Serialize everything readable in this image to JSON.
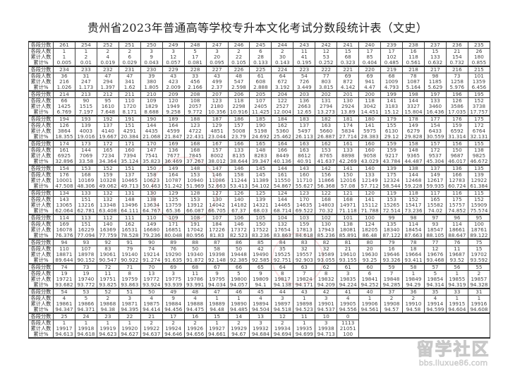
{
  "title": "贵州省2023年普通高等学校专升本文化考试分数段统计表（文史）",
  "table": {
    "row_labels": [
      "各段分数",
      "各段人数",
      "累计人数",
      "累计%"
    ],
    "groups": [
      {
        "scores": [
          261,
          254,
          252,
          251,
          250,
          249,
          248,
          247,
          246,
          245,
          244,
          243,
          242,
          241,
          240,
          239,
          238,
          237,
          236,
          235
        ],
        "counts": [
          1,
          1,
          2,
          2,
          3,
          3,
          5,
          3,
          2,
          6,
          2,
          11,
          12,
          15,
          17,
          17,
          16,
          15,
          21,
          26
        ],
        "cumulative": [
          1,
          2,
          4,
          6,
          9,
          12,
          17,
          20,
          22,
          28,
          30,
          41,
          53,
          68,
          85,
          102,
          118,
          133,
          154,
          180
        ],
        "percent": [
          "0.005",
          "0.01",
          "0.019",
          "0.029",
          "0.043",
          "0.057",
          "0.081",
          "0.095",
          "0.105",
          "0.133",
          "0.143",
          "0.195",
          "0.252",
          "0.323",
          "0.404",
          "0.485",
          "0.561",
          "0.632",
          "0.732",
          "0.855"
        ]
      },
      {
        "scores": [
          234,
          233,
          232,
          231,
          230,
          229,
          228,
          227,
          226,
          225,
          224,
          223,
          222,
          221,
          220,
          219,
          218,
          217,
          216,
          215
        ],
        "counts": [
          36,
          31,
          47,
          47,
          39,
          43,
          33,
          43,
          48,
          61,
          64,
          54,
          77,
          69,
          69,
          68,
          78,
          98,
          73,
          101
        ],
        "cumulative": [
          216,
          247,
          294,
          341,
          380,
          423,
          456,
          499,
          547,
          608,
          672,
          726,
          803,
          872,
          941,
          1009,
          1087,
          1185,
          1258,
          1359
        ],
        "percent": [
          "1.026",
          "1.173",
          "1.397",
          "1.62",
          "1.805",
          "2.009",
          "2.166",
          "2.37",
          "2.598",
          "2.888",
          "3.192",
          "3.449",
          "3.815",
          "4.142",
          "4.47",
          "4.793",
          "5.164",
          "5.629",
          "5.976",
          "6.456"
        ]
      },
      {
        "scores": [
          214,
          213,
          212,
          211,
          210,
          209,
          208,
          207,
          206,
          205,
          204,
          203,
          202,
          201,
          200,
          199,
          198,
          197,
          196,
          195
        ],
        "counts": [
          66,
          90,
          95,
          110,
          109,
          120,
          108,
          123,
          118,
          107,
          122,
          136,
          131,
          130,
          118,
          141,
          144,
          133,
          126,
          152
        ],
        "cumulative": [
          1425,
          1515,
          1610,
          1720,
          1829,
          1949,
          2057,
          2180,
          2298,
          2405,
          2527,
          2663,
          2794,
          2924,
          3042,
          3183,
          3327,
          3460,
          3586,
          3738
        ],
        "percent": [
          "6.769",
          "7.197",
          "7.648",
          "8.171",
          "8.688",
          "9.258",
          "9.772",
          "10.356",
          "10.916",
          "11.425",
          "12.004",
          "12.65",
          "13.273",
          "13.89",
          "14.451",
          "15.12",
          "15.804",
          "16.436",
          "17.035",
          "17.757"
        ]
      },
      {
        "scores": [
          194,
          193,
          192,
          191,
          190,
          189,
          188,
          187,
          186,
          185,
          184,
          183,
          182,
          181,
          180,
          179,
          178,
          177,
          176,
          175
        ],
        "counts": [
          126,
          139,
          137,
          151,
          144,
          164,
          123,
          129,
          157,
          190,
          162,
          137,
          163,
          174,
          141,
          155,
          149,
          154,
          159,
          172
        ],
        "cumulative": [
          3864,
          4003,
          4140,
          4291,
          4435,
          4599,
          4722,
          4851,
          5008,
          5198,
          5360,
          5497,
          5660,
          5834,
          5975,
          6130,
          6279,
          6433,
          6592,
          6764
        ],
        "percent": [
          "18.355",
          "19.016",
          "19.667",
          "20.384",
          "21.068",
          "21.847",
          "22.431",
          "23.044",
          "23.79",
          "24.692",
          "25.462",
          "26.113",
          "26.887",
          "27.714",
          "28.383",
          "29.12",
          "29.828",
          "30.559",
          "31.314",
          "32.131"
        ]
      },
      {
        "scores": [
          174,
          173,
          172,
          171,
          170,
          169,
          168,
          167,
          166,
          165,
          164,
          163,
          162,
          161,
          160,
          159,
          158,
          157,
          156,
          155
        ],
        "counts": [
          161,
          144,
          165,
          160,
          147,
          136,
          168,
          157,
          133,
          148,
          166,
          163,
          153,
          133,
          160,
          159,
          148,
          172,
          150,
          138
        ],
        "cumulative": [
          6925,
          7069,
          7234,
          7394,
          7541,
          7677,
          7845,
          8002,
          8135,
          8283,
          8449,
          8612,
          8765,
          8898,
          9058,
          9217,
          9365,
          9537,
          9687,
          9825
        ],
        "percent": [
          "32.896",
          "33.58",
          "34.364",
          "35.124",
          "35.823",
          "36.469",
          "37.267",
          "38.012",
          "38.644",
          "39.347",
          "40.136",
          "40.91",
          "41.637",
          "42.269",
          "43.029",
          "43.784",
          "44.487",
          "45.304",
          "46.017",
          "46.672"
        ]
      },
      {
        "scores": [
          154,
          153,
          152,
          151,
          150,
          149,
          148,
          147,
          146,
          145,
          144,
          143,
          142,
          141,
          140,
          139,
          138,
          137,
          136,
          135
        ],
        "counts": [
          176,
          168,
          159,
          137,
          158,
          164,
          153,
          146,
          158,
          145,
          161,
          160,
          156,
          150,
          133,
          175,
          144,
          149,
          166,
          139
        ],
        "cumulative": [
          10001,
          10169,
          10328,
          10465,
          10623,
          10787,
          10940,
          11086,
          11244,
          11389,
          11550,
          11710,
          11866,
          12016,
          12149,
          12324,
          12468,
          12617,
          12783,
          12922
        ],
        "percent": [
          "47.508",
          "48.306",
          "49.062",
          "49.713",
          "50.463",
          "51.242",
          "51.969",
          "52.663",
          "53.413",
          "54.102",
          "54.867",
          "55.627",
          "56.368",
          "57.08",
          "57.712",
          "58.544",
          "59.228",
          "59.935",
          "60.724",
          "61.384"
        ]
      },
      {
        "scores": [
          134,
          133,
          132,
          131,
          130,
          129,
          128,
          127,
          126,
          125,
          124,
          123,
          122,
          121,
          120,
          119,
          118,
          117,
          116,
          115
        ],
        "counts": [
          143,
          151,
          132,
          148,
          138,
          125,
          153,
          130,
          140,
          139,
          144,
          170,
          168,
          168,
          141,
          153,
          152,
          165,
          175,
          152
        ],
        "cumulative": [
          13065,
          13216,
          13348,
          13496,
          13634,
          13759,
          13912,
          14042,
          14182,
          14321,
          14465,
          14635,
          14803,
          14971,
          15112,
          15265,
          15417,
          15582,
          15757,
          15909
        ],
        "percent": [
          "62.064",
          "62.781",
          "63.408",
          "64.111",
          "64.767",
          "65.36",
          "66.087",
          "66.705",
          "67.37",
          "68.03",
          "68.714",
          "69.522",
          "70.32",
          "71.118",
          "71.788",
          "72.514",
          "73.236",
          "74.02",
          "74.852",
          "75.574"
        ]
      },
      {
        "scores": [
          114,
          113,
          112,
          111,
          110,
          109,
          108,
          107,
          106,
          105,
          104,
          103,
          102,
          101,
          100,
          99,
          98,
          97,
          96,
          95
        ],
        "counts": [
          169,
          151,
          140,
          162,
          149,
          171,
          191,
          184,
          146,
          150,
          132,
          159,
          130,
          138,
          124,
          135,
          114,
          93,
          114,
          100
        ],
        "cumulative": [
          16078,
          16229,
          16369,
          16531,
          16680,
          16851,
          17042,
          17226,
          17372,
          17522,
          17654,
          17813,
          17943,
          18081,
          18205,
          18340,
          18454,
          18547,
          18661,
          18761
        ],
        "percent": [
          "76.376",
          "77.094",
          "77.759",
          "78.528",
          "79.236",
          "80.048",
          "80.956",
          "81.83",
          "82.523",
          "83.236",
          "83.863",
          "84.618",
          "85.236",
          "85.891",
          "86.48",
          "87.122",
          "87.663",
          "88.105",
          "88.647",
          "89.122"
        ]
      },
      {
        "scores": [
          94,
          93,
          92,
          91,
          90,
          89,
          88,
          87,
          86,
          85,
          84,
          83,
          82,
          81,
          80,
          79,
          78,
          77,
          76,
          75
        ],
        "counts": [
          110,
          107,
          83,
          79,
          74,
          76,
          50,
          58,
          50,
          42,
          35,
          32,
          32,
          21,
          20,
          16,
          18,
          12,
          11,
          15
        ],
        "cumulative": [
          18871,
          18978,
          19061,
          19140,
          19214,
          19290,
          19340,
          19398,
          19448,
          19490,
          19525,
          19557,
          19589,
          19610,
          19630,
          19646,
          19664,
          19676,
          19687,
          19702
        ],
        "percent": [
          "89.644",
          "90.152",
          "90.547",
          "90.922",
          "91.274",
          "91.635",
          "91.872",
          "92.148",
          "92.385",
          "92.585",
          "92.751",
          "92.903",
          "93.055",
          "93.155",
          "93.25",
          "93.326",
          "93.411",
          "93.468",
          "93.52",
          "93.592"
        ]
      },
      {
        "scores": [
          74,
          73,
          72,
          71,
          70,
          69,
          68,
          67,
          66,
          65,
          64,
          63,
          62,
          61,
          60,
          59,
          58,
          57,
          56,
          55
        ],
        "counts": [
          19,
          19,
          11,
          8,
          13,
          3,
          11,
          9,
          5,
          9,
          8,
          7,
          8,
          3,
          6,
          7,
          1,
          5,
          1,
          2
        ],
        "cumulative": [
          19721,
          19740,
          19751,
          19759,
          19772,
          19775,
          19786,
          19795,
          19800,
          19809,
          19817,
          19824,
          19832,
          19835,
          19841,
          19848,
          19849,
          19854,
          19855,
          19857
        ],
        "percent": [
          "93.682",
          "93.772",
          "93.825",
          "93.863",
          "93.924",
          "93.939",
          "93.991",
          "94.034",
          "94.057",
          "94.1",
          "94.138",
          "94.171",
          "94.209",
          "94.224",
          "94.252",
          "94.285",
          "94.29",
          "94.314",
          "94.319",
          "94.328"
        ]
      },
      {
        "scores": [
          54,
          53,
          52,
          51,
          50,
          49,
          48,
          47,
          46,
          45,
          44,
          43,
          42,
          41,
          40,
          37,
          36,
          35,
          33,
          31
        ],
        "counts": [
          4,
          5,
          2,
          3,
          4,
          9,
          4,
          1,
          1,
          4,
          3,
          1,
          3,
          4,
          1,
          2,
          2,
          4,
          1,
          1
        ],
        "cumulative": [
          19861,
          19866,
          19868,
          19871,
          19875,
          19884,
          19888,
          19889,
          19890,
          19894,
          19897,
          19898,
          19901,
          19905,
          19906,
          19908,
          19910,
          19914,
          19915,
          19916
        ],
        "percent": [
          "94.347",
          "94.371",
          "94.38",
          "94.395",
          "94.414",
          "94.456",
          "94.475",
          "94.48",
          "94.485",
          "94.504",
          "94.518",
          "94.523",
          "94.537",
          "94.556",
          "94.561",
          "94.57",
          "94.58",
          "94.599",
          "94.604",
          "94.608"
        ]
      },
      {
        "scores": [
          25,
          24,
          23,
          22,
          21,
          17,
          16,
          15,
          14,
          13,
          12,
          11,
          10,
          0
        ],
        "counts": [
          1,
          1,
          1,
          1,
          2,
          2,
          2,
          1,
          2,
          3,
          2,
          1,
          3,
          1113
        ],
        "cumulative": [
          19917,
          19918,
          19919,
          19920,
          19922,
          19924,
          19926,
          19927,
          19929,
          19932,
          19934,
          19935,
          19938,
          21051
        ],
        "percent": [
          "94.613",
          "94.618",
          "94.623",
          "94.627",
          "94.637",
          "94.646",
          "94.656",
          "94.661",
          "94.67",
          "94.684",
          "94.694",
          "94.699",
          "94.713",
          "100"
        ]
      }
    ]
  },
  "watermark": {
    "logo_text": "留学社区",
    "url_text": "bbs.liuxue86.com"
  }
}
